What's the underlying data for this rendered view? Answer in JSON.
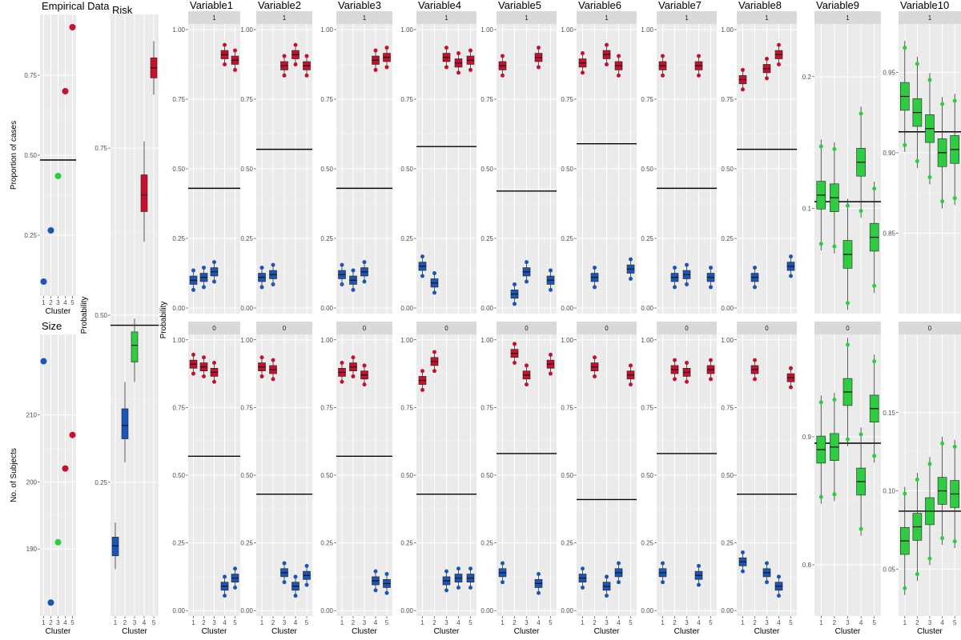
{
  "chart_data": {
    "type": "boxplot",
    "colors": {
      "high": "#c8102e",
      "low": "#1a56b8",
      "mid": "#2ecc40",
      "panel_bg": "#ebebeb",
      "strip_bg": "#d9d9d9"
    },
    "x_categories": [
      "1",
      "2",
      "3",
      "4",
      "5"
    ],
    "empirical": {
      "title": "Empirical Data",
      "ylabel": "Proportion of cases",
      "xlabel": "Cluster",
      "ylim": [
        0.06,
        0.94
      ],
      "yticks": [
        "0.25",
        "0.50",
        "0.75"
      ],
      "ytick_values": [
        0.25,
        0.5,
        0.75
      ],
      "hline": 0.485,
      "points": [
        {
          "x": 1,
          "y": 0.105,
          "color": "low"
        },
        {
          "x": 2,
          "y": 0.265,
          "color": "low"
        },
        {
          "x": 3,
          "y": 0.435,
          "color": "mid"
        },
        {
          "x": 4,
          "y": 0.7,
          "color": "high"
        },
        {
          "x": 5,
          "y": 0.9,
          "color": "high"
        }
      ]
    },
    "size": {
      "title": "Size",
      "ylabel": "No. of Subjects",
      "xlabel": "Cluster",
      "ylim": [
        180,
        222
      ],
      "yticks": [
        "190",
        "200",
        "210"
      ],
      "ytick_values": [
        190,
        200,
        210
      ],
      "points": [
        {
          "x": 1,
          "y": 218,
          "color": "low"
        },
        {
          "x": 2,
          "y": 182,
          "color": "low"
        },
        {
          "x": 3,
          "y": 191,
          "color": "mid"
        },
        {
          "x": 4,
          "y": 202,
          "color": "high"
        },
        {
          "x": 5,
          "y": 207,
          "color": "high"
        }
      ]
    },
    "risk": {
      "title": "Risk",
      "ylabel": "Probability",
      "xlabel": "Cluster",
      "ylim": [
        0.05,
        0.95
      ],
      "yticks": [
        "0.25",
        "0.50",
        "0.75"
      ],
      "ytick_values": [
        0.25,
        0.5,
        0.75
      ],
      "hline": 0.485,
      "boxes": [
        {
          "x": 1,
          "q1": 0.14,
          "med": 0.155,
          "q3": 0.168,
          "lo": 0.12,
          "hi": 0.19,
          "color": "low"
        },
        {
          "x": 2,
          "q1": 0.315,
          "med": 0.335,
          "q3": 0.36,
          "lo": 0.28,
          "hi": 0.4,
          "color": "low"
        },
        {
          "x": 3,
          "q1": 0.43,
          "med": 0.455,
          "q3": 0.475,
          "lo": 0.4,
          "hi": 0.495,
          "color": "mid"
        },
        {
          "x": 4,
          "q1": 0.655,
          "med": 0.68,
          "q3": 0.71,
          "lo": 0.61,
          "hi": 0.76,
          "color": "high"
        },
        {
          "x": 5,
          "q1": 0.855,
          "med": 0.87,
          "q3": 0.885,
          "lo": 0.83,
          "hi": 0.91,
          "color": "high"
        }
      ]
    },
    "row_labels": {
      "ylabel": "Probability",
      "xlabel": "Cluster",
      "yticks": [
        "0.00",
        "0.25",
        "0.50",
        "0.75",
        "1.00"
      ],
      "ytick_values": [
        0,
        0.25,
        0.5,
        0.75,
        1.0
      ]
    },
    "facets": [
      "1",
      "0"
    ],
    "variables": [
      {
        "title": "Variable1",
        "hline": {
          "1": 0.43,
          "0": 0.57
        },
        "boxes": {
          "1": [
            {
              "x": 1,
              "med": 0.1,
              "color": "low"
            },
            {
              "x": 2,
              "med": 0.11,
              "color": "low"
            },
            {
              "x": 3,
              "med": 0.13,
              "color": "low"
            },
            {
              "x": 4,
              "med": 0.91,
              "color": "high"
            },
            {
              "x": 5,
              "med": 0.89,
              "color": "high"
            }
          ],
          "0": [
            {
              "x": 1,
              "med": 0.91,
              "color": "high"
            },
            {
              "x": 2,
              "med": 0.9,
              "color": "high"
            },
            {
              "x": 3,
              "med": 0.88,
              "color": "high"
            },
            {
              "x": 4,
              "med": 0.09,
              "color": "low"
            },
            {
              "x": 5,
              "med": 0.12,
              "color": "low"
            }
          ]
        }
      },
      {
        "title": "Variable2",
        "hline": {
          "1": 0.57,
          "0": 0.43
        },
        "boxes": {
          "1": [
            {
              "x": 1,
              "med": 0.11,
              "color": "low"
            },
            {
              "x": 2,
              "med": 0.12,
              "color": "low"
            },
            {
              "x": 3,
              "med": 0.87,
              "color": "high"
            },
            {
              "x": 4,
              "med": 0.91,
              "color": "high"
            },
            {
              "x": 5,
              "med": 0.87,
              "color": "high"
            }
          ],
          "0": [
            {
              "x": 1,
              "med": 0.9,
              "color": "high"
            },
            {
              "x": 2,
              "med": 0.89,
              "color": "high"
            },
            {
              "x": 3,
              "med": 0.14,
              "color": "low"
            },
            {
              "x": 4,
              "med": 0.09,
              "color": "low"
            },
            {
              "x": 5,
              "med": 0.13,
              "color": "low"
            }
          ]
        }
      },
      {
        "title": "Variable3",
        "hline": {
          "1": 0.43,
          "0": 0.57
        },
        "boxes": {
          "1": [
            {
              "x": 1,
              "med": 0.12,
              "color": "low"
            },
            {
              "x": 2,
              "med": 0.1,
              "color": "low"
            },
            {
              "x": 3,
              "med": 0.13,
              "color": "low"
            },
            {
              "x": 4,
              "med": 0.89,
              "color": "high"
            },
            {
              "x": 5,
              "med": 0.9,
              "color": "high"
            }
          ],
          "0": [
            {
              "x": 1,
              "med": 0.88,
              "color": "high"
            },
            {
              "x": 2,
              "med": 0.9,
              "color": "high"
            },
            {
              "x": 3,
              "med": 0.87,
              "color": "high"
            },
            {
              "x": 4,
              "med": 0.11,
              "color": "low"
            },
            {
              "x": 5,
              "med": 0.1,
              "color": "low"
            }
          ]
        }
      },
      {
        "title": "Variable4",
        "hline": {
          "1": 0.58,
          "0": 0.43
        },
        "boxes": {
          "1": [
            {
              "x": 1,
              "med": 0.15,
              "color": "low"
            },
            {
              "x": 2,
              "med": 0.09,
              "color": "low"
            },
            {
              "x": 3,
              "med": 0.9,
              "color": "high"
            },
            {
              "x": 4,
              "med": 0.88,
              "color": "high"
            },
            {
              "x": 5,
              "med": 0.89,
              "color": "high"
            }
          ],
          "0": [
            {
              "x": 1,
              "med": 0.85,
              "color": "high"
            },
            {
              "x": 2,
              "med": 0.92,
              "color": "high"
            },
            {
              "x": 3,
              "med": 0.11,
              "color": "low"
            },
            {
              "x": 4,
              "med": 0.12,
              "color": "low"
            },
            {
              "x": 5,
              "med": 0.12,
              "color": "low"
            }
          ]
        }
      },
      {
        "title": "Variable5",
        "hline": {
          "1": 0.42,
          "0": 0.58
        },
        "boxes": {
          "1": [
            {
              "x": 1,
              "med": 0.87,
              "color": "high"
            },
            {
              "x": 2,
              "med": 0.05,
              "color": "low"
            },
            {
              "x": 3,
              "med": 0.13,
              "color": "low"
            },
            {
              "x": 4,
              "med": 0.9,
              "color": "high"
            },
            {
              "x": 5,
              "med": 0.1,
              "color": "low"
            }
          ],
          "0": [
            {
              "x": 1,
              "med": 0.14,
              "color": "low"
            },
            {
              "x": 2,
              "med": 0.95,
              "color": "high"
            },
            {
              "x": 3,
              "med": 0.87,
              "color": "high"
            },
            {
              "x": 4,
              "med": 0.1,
              "color": "low"
            },
            {
              "x": 5,
              "med": 0.91,
              "color": "high"
            }
          ]
        }
      },
      {
        "title": "Variable6",
        "hline": {
          "1": 0.59,
          "0": 0.41
        },
        "boxes": {
          "1": [
            {
              "x": 1,
              "med": 0.88,
              "color": "high"
            },
            {
              "x": 2,
              "med": 0.11,
              "color": "low"
            },
            {
              "x": 3,
              "med": 0.91,
              "color": "high"
            },
            {
              "x": 4,
              "med": 0.87,
              "color": "high"
            },
            {
              "x": 5,
              "med": 0.14,
              "color": "low"
            }
          ],
          "0": [
            {
              "x": 1,
              "med": 0.12,
              "color": "low"
            },
            {
              "x": 2,
              "med": 0.9,
              "color": "high"
            },
            {
              "x": 3,
              "med": 0.09,
              "color": "low"
            },
            {
              "x": 4,
              "med": 0.14,
              "color": "low"
            },
            {
              "x": 5,
              "med": 0.87,
              "color": "high"
            }
          ]
        }
      },
      {
        "title": "Variable7",
        "hline": {
          "1": 0.43,
          "0": 0.58
        },
        "boxes": {
          "1": [
            {
              "x": 1,
              "med": 0.87,
              "color": "high"
            },
            {
              "x": 2,
              "med": 0.11,
              "color": "low"
            },
            {
              "x": 3,
              "med": 0.12,
              "color": "low"
            },
            {
              "x": 4,
              "med": 0.87,
              "color": "high"
            },
            {
              "x": 5,
              "med": 0.11,
              "color": "low"
            }
          ],
          "0": [
            {
              "x": 1,
              "med": 0.14,
              "color": "low"
            },
            {
              "x": 2,
              "med": 0.89,
              "color": "high"
            },
            {
              "x": 3,
              "med": 0.88,
              "color": "high"
            },
            {
              "x": 4,
              "med": 0.13,
              "color": "low"
            },
            {
              "x": 5,
              "med": 0.89,
              "color": "high"
            }
          ]
        }
      },
      {
        "title": "Variable8",
        "hline": {
          "1": 0.57,
          "0": 0.43
        },
        "boxes": {
          "1": [
            {
              "x": 1,
              "med": 0.82,
              "color": "high"
            },
            {
              "x": 2,
              "med": 0.11,
              "color": "low"
            },
            {
              "x": 3,
              "med": 0.86,
              "color": "high"
            },
            {
              "x": 4,
              "med": 0.91,
              "color": "high"
            },
            {
              "x": 5,
              "med": 0.15,
              "color": "low"
            }
          ],
          "0": [
            {
              "x": 1,
              "med": 0.18,
              "color": "low"
            },
            {
              "x": 2,
              "med": 0.89,
              "color": "high"
            },
            {
              "x": 3,
              "med": 0.14,
              "color": "low"
            },
            {
              "x": 4,
              "med": 0.09,
              "color": "low"
            },
            {
              "x": 5,
              "med": 0.86,
              "color": "high"
            }
          ]
        }
      },
      {
        "title": "Variable9",
        "custom_scale": true,
        "ticks": {
          "1": {
            "labels": [
              "0.1",
              "0.2"
            ],
            "values": [
              0.1,
              0.2
            ]
          },
          "0": {
            "labels": [
              "0.8",
              "0.9"
            ],
            "values": [
              0.8,
              0.9
            ]
          }
        },
        "ylim": {
          "1": [
            0.02,
            0.24
          ],
          "0": [
            0.76,
            0.98
          ]
        },
        "hline": {
          "1": 0.105,
          "0": 0.895
        },
        "boxes": {
          "1": [
            {
              "x": 1,
              "med": 0.11,
              "color": "mid"
            },
            {
              "x": 2,
              "med": 0.108,
              "color": "mid"
            },
            {
              "x": 3,
              "med": 0.065,
              "color": "mid"
            },
            {
              "x": 4,
              "med": 0.135,
              "color": "mid"
            },
            {
              "x": 5,
              "med": 0.078,
              "color": "mid"
            }
          ],
          "0": [
            {
              "x": 1,
              "med": 0.89,
              "color": "mid"
            },
            {
              "x": 2,
              "med": 0.892,
              "color": "mid"
            },
            {
              "x": 3,
              "med": 0.935,
              "color": "mid"
            },
            {
              "x": 4,
              "med": 0.865,
              "color": "mid"
            },
            {
              "x": 5,
              "med": 0.922,
              "color": "mid"
            }
          ]
        }
      },
      {
        "title": "Variable10",
        "custom_scale": true,
        "ticks": {
          "1": {
            "labels": [
              "0.85",
              "0.90",
              "0.95"
            ],
            "values": [
              0.85,
              0.9,
              0.95
            ]
          },
          "0": {
            "labels": [
              "0.05",
              "0.10",
              "0.15"
            ],
            "values": [
              0.05,
              0.1,
              0.15
            ]
          }
        },
        "ylim": {
          "1": [
            0.8,
            0.98
          ],
          "0": [
            0.02,
            0.2
          ]
        },
        "hline": {
          "1": 0.913,
          "0": 0.087
        },
        "boxes": {
          "1": [
            {
              "x": 1,
              "med": 0.935,
              "color": "mid"
            },
            {
              "x": 2,
              "med": 0.925,
              "color": "mid"
            },
            {
              "x": 3,
              "med": 0.915,
              "color": "mid"
            },
            {
              "x": 4,
              "med": 0.9,
              "color": "mid"
            },
            {
              "x": 5,
              "med": 0.902,
              "color": "mid"
            }
          ],
          "0": [
            {
              "x": 1,
              "med": 0.068,
              "color": "mid"
            },
            {
              "x": 2,
              "med": 0.077,
              "color": "mid"
            },
            {
              "x": 3,
              "med": 0.087,
              "color": "mid"
            },
            {
              "x": 4,
              "med": 0.1,
              "color": "mid"
            },
            {
              "x": 5,
              "med": 0.098,
              "color": "mid"
            }
          ]
        }
      }
    ]
  }
}
